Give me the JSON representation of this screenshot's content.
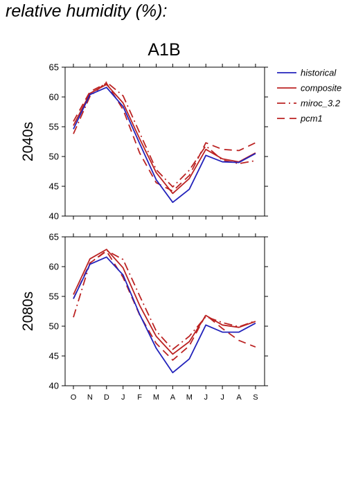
{
  "page": {
    "title": "relative humidity (%):"
  },
  "colors": {
    "historical": "#2222bb",
    "scenario": "#bb2222"
  },
  "chart_data": {
    "type": "line",
    "title": "A1B",
    "categories": [
      "O",
      "N",
      "D",
      "J",
      "F",
      "M",
      "A",
      "M",
      "J",
      "J",
      "A",
      "S"
    ],
    "ylim": [
      40,
      65
    ],
    "yticks": [
      "40",
      "45",
      "50",
      "55",
      "60",
      "65"
    ],
    "legend": {
      "placement": "right",
      "entries": [
        "historical",
        "composite",
        "miroc_3.2",
        "pcm1"
      ]
    },
    "panels": [
      {
        "label": "2040s",
        "series": [
          {
            "name": "historical",
            "style": "solid",
            "color": "#2222bb",
            "values": [
              54.6,
              60.4,
              61.6,
              58.4,
              52.2,
              46.1,
              42.3,
              44.5,
              50.2,
              49.1,
              49.0,
              50.5
            ]
          },
          {
            "name": "composite",
            "style": "solid",
            "color": "#bb2222",
            "values": [
              55.2,
              60.6,
              62.1,
              59.0,
              53.0,
              47.3,
              43.8,
              46.3,
              51.2,
              49.6,
              49.1,
              50.6
            ]
          },
          {
            "name": "miroc_3.2",
            "style": "dashdot",
            "color": "#bb2222",
            "values": [
              53.8,
              60.1,
              62.5,
              60.2,
              54.0,
              47.8,
              44.9,
              47.7,
              51.8,
              49.4,
              48.8,
              49.3
            ]
          },
          {
            "name": "pcm1",
            "style": "dash",
            "color": "#bb2222",
            "values": [
              55.9,
              60.9,
              62.3,
              57.9,
              50.6,
              45.6,
              44.2,
              46.8,
              52.3,
              51.2,
              51.0,
              52.3
            ]
          }
        ]
      },
      {
        "label": "2080s",
        "series": [
          {
            "name": "historical",
            "style": "solid",
            "color": "#2222bb",
            "values": [
              54.6,
              60.4,
              61.6,
              58.6,
              52.0,
              46.3,
              42.2,
              44.5,
              50.2,
              49.0,
              49.0,
              50.5
            ]
          },
          {
            "name": "composite",
            "style": "solid",
            "color": "#bb2222",
            "values": [
              55.3,
              61.3,
              62.9,
              59.8,
              53.5,
              48.3,
              45.3,
              47.4,
              51.8,
              50.2,
              49.8,
              50.8
            ]
          },
          {
            "name": "miroc_3.2",
            "style": "dashdot",
            "color": "#bb2222",
            "values": [
              51.5,
              60.6,
              62.7,
              61.2,
              55.1,
              49.2,
              46.1,
              48.3,
              51.6,
              50.6,
              49.9,
              50.9
            ]
          },
          {
            "name": "pcm1",
            "style": "dash",
            "color": "#bb2222",
            "values": [
              54.6,
              60.6,
              62.6,
              58.2,
              51.9,
              47.1,
              44.3,
              46.7,
              51.9,
              49.6,
              47.6,
              46.5
            ]
          }
        ]
      }
    ]
  }
}
